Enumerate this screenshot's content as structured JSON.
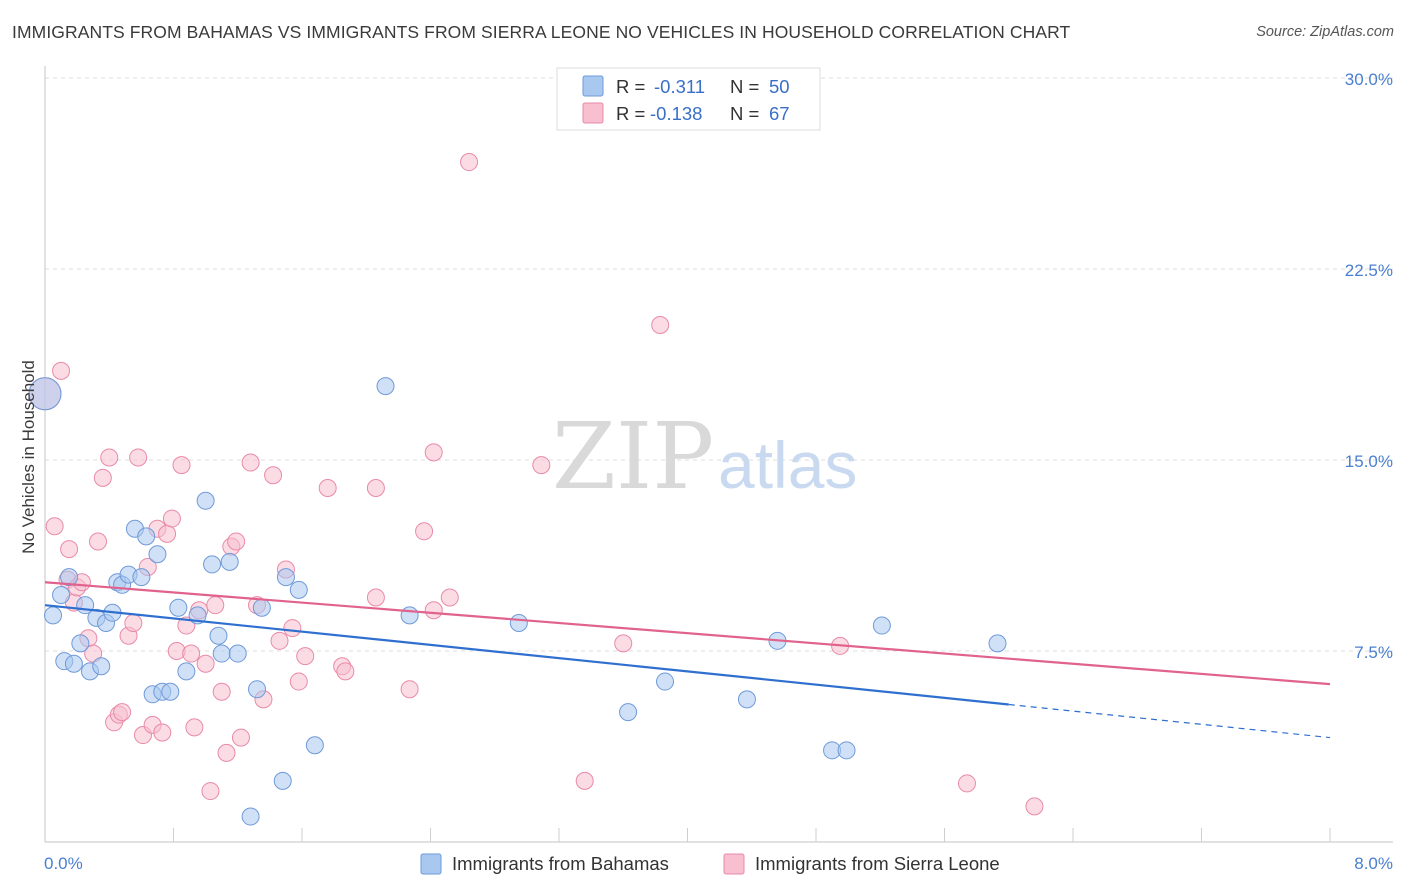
{
  "title": "IMMIGRANTS FROM BAHAMAS VS IMMIGRANTS FROM SIERRA LEONE NO VEHICLES IN HOUSEHOLD CORRELATION CHART",
  "source": "Source: ZipAtlas.com",
  "watermark": {
    "zip": "ZIP",
    "atlas": "atlas"
  },
  "legend": {
    "r_label": "R =",
    "n_label": "N =",
    "rows": [
      {
        "r": "-0.311",
        "n": "50",
        "color": "#a9c8f0",
        "stroke": "#6f9ad8"
      },
      {
        "r": "-0.138",
        "n": "67",
        "color": "#f7bfd0",
        "stroke": "#e98aa8"
      }
    ]
  },
  "chart_data": {
    "type": "scatter",
    "ylabel": "No Vehicles in Household",
    "xlim": [
      0,
      8
    ],
    "ylim": [
      0,
      30
    ],
    "x_tick_labels": [
      "0.0%",
      "8.0%"
    ],
    "y_ticks": [
      7.5,
      15.0,
      22.5,
      30.0
    ],
    "y_tick_labels": [
      "7.5%",
      "15.0%",
      "22.5%",
      "30.0%"
    ],
    "grid": true,
    "series": [
      {
        "name": "Immigrants from Bahamas",
        "color": "#a9c8f0",
        "stroke": "#6f9ad8",
        "line_color": "#2f6fd0",
        "trend": {
          "x0": 0.0,
          "y0": 9.3,
          "x1": 6.0,
          "y1": 5.4,
          "dash_to_x": 8.0,
          "dash_to_y": 4.1
        },
        "points": [
          [
            0.0,
            17.6
          ],
          [
            0.05,
            8.9
          ],
          [
            0.1,
            9.7
          ],
          [
            0.12,
            7.1
          ],
          [
            0.15,
            10.4
          ],
          [
            0.18,
            7.0
          ],
          [
            0.22,
            7.8
          ],
          [
            0.25,
            9.3
          ],
          [
            0.28,
            6.7
          ],
          [
            0.32,
            8.8
          ],
          [
            0.35,
            6.9
          ],
          [
            0.38,
            8.6
          ],
          [
            0.42,
            9.0
          ],
          [
            0.45,
            10.2
          ],
          [
            0.48,
            10.1
          ],
          [
            0.52,
            10.5
          ],
          [
            0.56,
            12.3
          ],
          [
            0.6,
            10.4
          ],
          [
            0.63,
            12.0
          ],
          [
            0.67,
            5.8
          ],
          [
            0.7,
            11.3
          ],
          [
            0.73,
            5.9
          ],
          [
            0.78,
            5.9
          ],
          [
            0.83,
            9.2
          ],
          [
            0.88,
            6.7
          ],
          [
            0.95,
            8.9
          ],
          [
            1.0,
            13.4
          ],
          [
            1.04,
            10.9
          ],
          [
            1.08,
            8.1
          ],
          [
            1.1,
            7.4
          ],
          [
            1.15,
            11.0
          ],
          [
            1.2,
            7.4
          ],
          [
            1.28,
            1.0
          ],
          [
            1.32,
            6.0
          ],
          [
            1.35,
            9.2
          ],
          [
            1.48,
            2.4
          ],
          [
            1.5,
            10.4
          ],
          [
            1.58,
            9.9
          ],
          [
            1.68,
            3.8
          ],
          [
            2.12,
            17.9
          ],
          [
            2.27,
            8.9
          ],
          [
            2.95,
            8.6
          ],
          [
            3.63,
            5.1
          ],
          [
            3.86,
            6.3
          ],
          [
            4.37,
            5.6
          ],
          [
            4.56,
            7.9
          ],
          [
            4.9,
            3.6
          ],
          [
            4.99,
            3.6
          ],
          [
            5.21,
            8.5
          ],
          [
            5.93,
            7.8
          ]
        ]
      },
      {
        "name": "Immigrants from Sierra Leone",
        "color": "#f7bfd0",
        "stroke": "#e98aa8",
        "line_color": "#e0628d",
        "trend": {
          "x0": 0.0,
          "y0": 10.2,
          "x1": 8.0,
          "y1": 6.2
        },
        "points": [
          [
            0.0,
            17.6
          ],
          [
            0.06,
            12.4
          ],
          [
            0.1,
            18.5
          ],
          [
            0.14,
            10.3
          ],
          [
            0.15,
            11.5
          ],
          [
            0.18,
            9.4
          ],
          [
            0.2,
            10.0
          ],
          [
            0.23,
            10.2
          ],
          [
            0.27,
            8.0
          ],
          [
            0.3,
            7.4
          ],
          [
            0.33,
            11.8
          ],
          [
            0.36,
            14.3
          ],
          [
            0.4,
            15.1
          ],
          [
            0.43,
            4.7
          ],
          [
            0.46,
            5.0
          ],
          [
            0.48,
            5.1
          ],
          [
            0.52,
            8.1
          ],
          [
            0.55,
            8.6
          ],
          [
            0.58,
            15.1
          ],
          [
            0.61,
            4.2
          ],
          [
            0.64,
            10.8
          ],
          [
            0.67,
            4.6
          ],
          [
            0.7,
            12.3
          ],
          [
            0.73,
            4.3
          ],
          [
            0.76,
            12.1
          ],
          [
            0.79,
            12.7
          ],
          [
            0.82,
            7.5
          ],
          [
            0.85,
            14.8
          ],
          [
            0.88,
            8.5
          ],
          [
            0.91,
            7.4
          ],
          [
            0.93,
            4.5
          ],
          [
            0.96,
            9.1
          ],
          [
            1.0,
            7.0
          ],
          [
            1.03,
            2.0
          ],
          [
            1.06,
            9.3
          ],
          [
            1.1,
            5.9
          ],
          [
            1.13,
            3.5
          ],
          [
            1.16,
            11.6
          ],
          [
            1.19,
            11.8
          ],
          [
            1.22,
            4.1
          ],
          [
            1.28,
            14.9
          ],
          [
            1.32,
            9.3
          ],
          [
            1.36,
            5.6
          ],
          [
            1.42,
            14.4
          ],
          [
            1.46,
            7.9
          ],
          [
            1.5,
            10.7
          ],
          [
            1.54,
            8.4
          ],
          [
            1.58,
            6.3
          ],
          [
            1.62,
            7.3
          ],
          [
            1.76,
            13.9
          ],
          [
            1.85,
            6.9
          ],
          [
            1.87,
            6.7
          ],
          [
            2.06,
            13.9
          ],
          [
            2.06,
            9.6
          ],
          [
            2.27,
            6.0
          ],
          [
            2.36,
            12.2
          ],
          [
            2.42,
            9.1
          ],
          [
            2.42,
            15.3
          ],
          [
            2.52,
            9.6
          ],
          [
            2.64,
            26.7
          ],
          [
            3.09,
            14.8
          ],
          [
            3.36,
            2.4
          ],
          [
            3.6,
            7.8
          ],
          [
            3.83,
            20.3
          ],
          [
            4.95,
            7.7
          ],
          [
            5.74,
            2.3
          ],
          [
            6.16,
            1.4
          ]
        ]
      }
    ]
  }
}
